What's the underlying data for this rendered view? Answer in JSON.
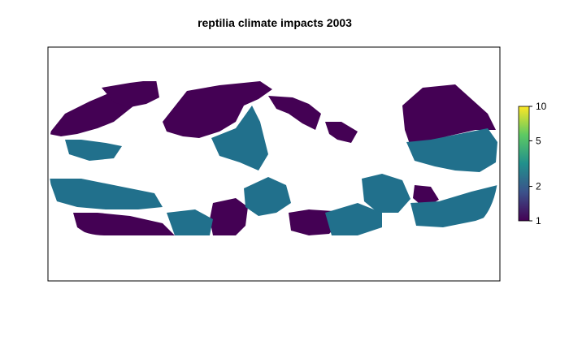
{
  "title": "reptilia climate impacts 2003",
  "legend": {
    "scale": "log",
    "range": [
      1,
      10
    ],
    "ticks": [
      {
        "value": 10,
        "label": "10"
      },
      {
        "value": 5,
        "label": "5"
      },
      {
        "value": 2,
        "label": "2"
      },
      {
        "value": 1,
        "label": "1"
      }
    ],
    "colors": [
      "#440154",
      "#3b528b",
      "#21908c",
      "#5dc963",
      "#fde725"
    ]
  },
  "map": {
    "projection": "equal-area pseudocylindrical (Eckert IV style)",
    "background_fill": "#ffffff",
    "impact_colors": {
      "low": "#440154",
      "mid": "#21708c"
    }
  }
}
